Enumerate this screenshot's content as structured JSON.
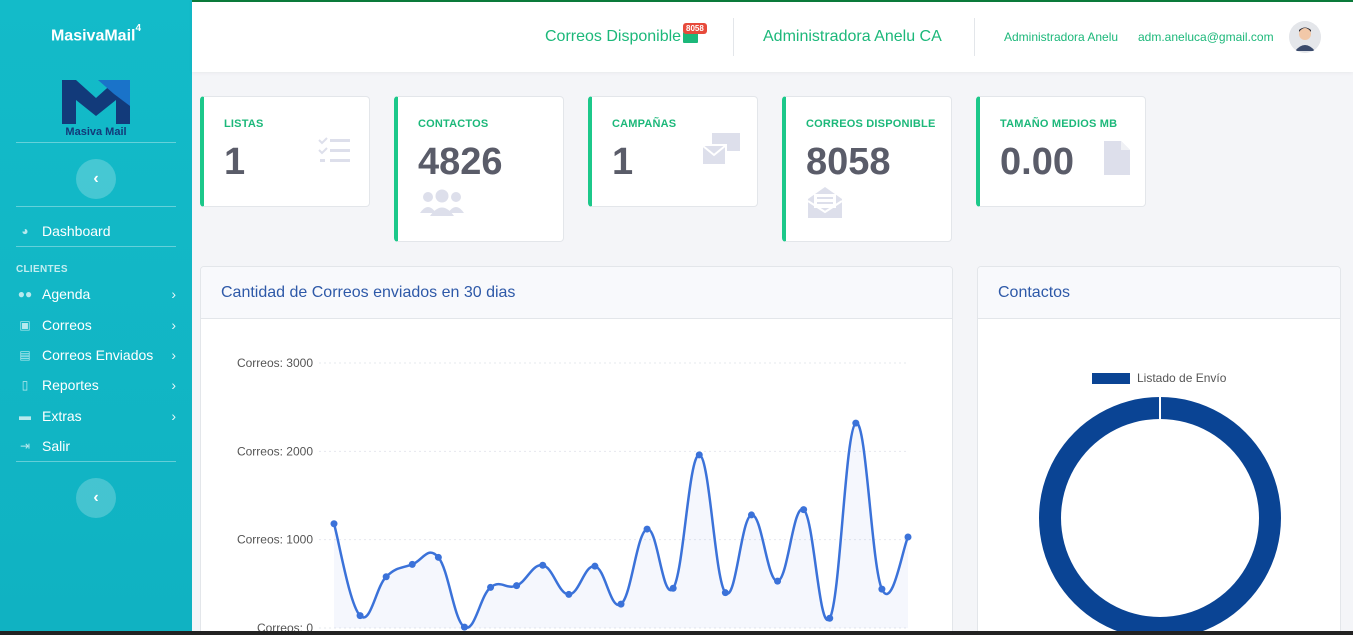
{
  "sidebar": {
    "brand": "MasivaMail",
    "brand_sup": "4",
    "logo_text": "Masiva Mail",
    "section_label": "CLIENTES",
    "collapse_glyph": "‹",
    "items": [
      {
        "label": "Dashboard",
        "icon": "gauge-icon"
      },
      {
        "label": "Agenda",
        "icon": "users-icon"
      },
      {
        "label": "Correos",
        "icon": "mail-bulk-icon"
      },
      {
        "label": "Correos Enviados",
        "icon": "archive-icon"
      },
      {
        "label": "Reportes",
        "icon": "report-icon"
      },
      {
        "label": "Extras",
        "icon": "toolbox-icon"
      },
      {
        "label": "Salir",
        "icon": "sign-out-icon"
      }
    ]
  },
  "topbar": {
    "correos_label": "Correos Disponible",
    "correos_badge": "8058",
    "company": "Administradora Anelu CA",
    "user_name": "Administradora Anelu",
    "user_email": "adm.aneluca@gmail.com"
  },
  "cards": [
    {
      "label": "LISTAS",
      "value": "1",
      "icon": "list-check-icon"
    },
    {
      "label": "CONTACTOS",
      "value": "4826",
      "icon": "users-icon"
    },
    {
      "label": "CAMPAÑAS",
      "value": "1",
      "icon": "mail-bulk-icon"
    },
    {
      "label": "CORREOS DISPONIBLE",
      "value": "8058",
      "icon": "envelope-open-icon"
    },
    {
      "label": "TAMAÑO MEDIOS MB",
      "value": "0.00",
      "icon": "file-icon"
    }
  ],
  "line_panel": {
    "title": "Cantidad de Correos enviados en 30 dias"
  },
  "donut_panel": {
    "title": "Contactos"
  },
  "colors": {
    "accent": "#1cc88a",
    "sidebar": "#13bbc9",
    "line": "#3b72d9",
    "donut": "#0a4494"
  },
  "chart_data": [
    {
      "type": "line",
      "title": "Cantidad de Correos enviados en 30 dias",
      "ytick_labels": [
        "Correos: 0",
        "Correos: 1000",
        "Correos: 2000",
        "Correos: 3000"
      ],
      "yticks": [
        0,
        1000,
        2000,
        3000
      ],
      "ylim": [
        0,
        3000
      ],
      "grid": true,
      "series": [
        {
          "values": [
            1180,
            140,
            580,
            720,
            800,
            10,
            460,
            480,
            710,
            380,
            700,
            270,
            1120,
            450,
            1960,
            400,
            1280,
            530,
            1340,
            110,
            2320,
            440,
            1030
          ]
        }
      ]
    },
    {
      "type": "pie",
      "title": "Contactos",
      "labels": [
        "Listado de Envío"
      ],
      "values": [
        4826
      ],
      "legend": "top"
    }
  ]
}
